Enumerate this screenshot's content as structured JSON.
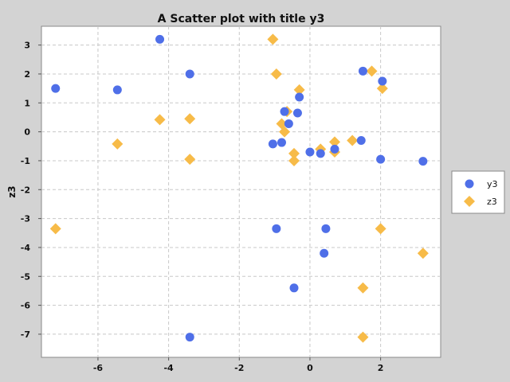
{
  "chart_data": {
    "type": "scatter",
    "title": "A Scatter plot with title y3",
    "xlabel": "",
    "ylabel": "z3",
    "xlim": [
      -7.6,
      3.7
    ],
    "ylim": [
      -7.8,
      3.65
    ],
    "xticks": [
      -6,
      -4,
      -2,
      0,
      2
    ],
    "yticks": [
      3,
      2,
      1,
      0,
      -1,
      -2,
      -3,
      -4,
      -5,
      -6,
      -7
    ],
    "grid": true,
    "legend_position": "right",
    "series": [
      {
        "name": "y3",
        "marker": "circle",
        "color": "#4f6fe8",
        "points": [
          [
            -7.2,
            1.5
          ],
          [
            -5.45,
            1.45
          ],
          [
            -4.25,
            3.2
          ],
          [
            -3.4,
            2.0
          ],
          [
            -0.72,
            0.7
          ],
          [
            -0.35,
            0.65
          ],
          [
            -0.3,
            1.2
          ],
          [
            -0.6,
            0.28
          ],
          [
            -1.05,
            -0.42
          ],
          [
            -0.8,
            -0.37
          ],
          [
            0.0,
            -0.7
          ],
          [
            0.3,
            -0.75
          ],
          [
            0.7,
            -0.6
          ],
          [
            1.45,
            -0.3
          ],
          [
            1.5,
            2.1
          ],
          [
            2.05,
            1.75
          ],
          [
            2.0,
            -0.95
          ],
          [
            3.2,
            -1.02
          ],
          [
            -0.95,
            -3.35
          ],
          [
            0.45,
            -3.35
          ],
          [
            0.4,
            -4.2
          ],
          [
            -0.45,
            -5.4
          ],
          [
            -3.4,
            -7.1
          ]
        ]
      },
      {
        "name": "z3",
        "marker": "diamond",
        "color": "#f7bb48",
        "points": [
          [
            -1.05,
            3.2
          ],
          [
            -0.95,
            2.0
          ],
          [
            -0.3,
            1.45
          ],
          [
            -4.25,
            0.42
          ],
          [
            -3.4,
            0.45
          ],
          [
            -0.65,
            0.7
          ],
          [
            -0.8,
            0.28
          ],
          [
            -0.72,
            0.0
          ],
          [
            -5.45,
            -0.42
          ],
          [
            -3.4,
            -0.95
          ],
          [
            -0.45,
            -0.75
          ],
          [
            -0.45,
            -1.0
          ],
          [
            0.3,
            -0.6
          ],
          [
            0.7,
            -0.35
          ],
          [
            0.7,
            -0.7
          ],
          [
            1.2,
            -0.3
          ],
          [
            1.75,
            2.1
          ],
          [
            2.05,
            1.5
          ],
          [
            -7.2,
            -3.35
          ],
          [
            2.0,
            -3.35
          ],
          [
            3.2,
            -4.2
          ],
          [
            1.5,
            -5.4
          ],
          [
            1.5,
            -7.1
          ]
        ]
      }
    ]
  }
}
